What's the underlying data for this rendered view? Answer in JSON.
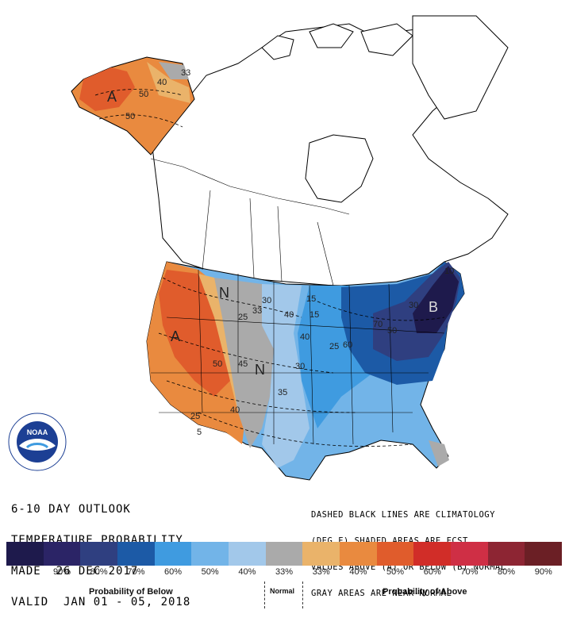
{
  "outlook": {
    "line1": "6-10 DAY OUTLOOK",
    "line2": "TEMPERATURE PROBABILITY",
    "line3": "MADE  26 DEC 2017",
    "line4": "VALID  JAN 01 - 05, 2018"
  },
  "notes": {
    "line1": "DASHED BLACK LINES ARE CLIMATOLOGY",
    "line2": "(DEG F) SHADED AREAS ARE FCST",
    "line3": "VALUES ABOVE (A) OR BELOW (B) NORMAL",
    "line4": "GRAY AREAS ARE NEAR-NORMAL"
  },
  "logo": {
    "name": "NOAA",
    "ring_text": "NATIONAL OCEANIC AND ATMOSPHERIC ADMINISTRATION · U.S. DEPARTMENT OF COMMERCE"
  },
  "map_labels": {
    "above_west": "A",
    "above_alaska": "A",
    "below_east": "B",
    "normal_north": "N",
    "normal_south": "N"
  },
  "contours": [
    "33",
    "40",
    "50",
    "50",
    "30",
    "40",
    "25",
    "33",
    "40",
    "50",
    "40",
    "25",
    "35",
    "30",
    "15",
    "15",
    "50",
    "25",
    "60",
    "70",
    "30",
    "10",
    "5",
    "45"
  ],
  "legend": {
    "colors": [
      "#1e1a4c",
      "#2b2466",
      "#2f3f80",
      "#1c5aa6",
      "#3f9be0",
      "#72b4e8",
      "#a2c8ea",
      "#aaaaaa",
      "#eab36a",
      "#e98a3f",
      "#e05c2c",
      "#d12d28",
      "#cf2f45",
      "#8d2533",
      "#6b1f25"
    ],
    "labels": [
      "",
      "90%",
      "80%",
      "70%",
      "60%",
      "50%",
      "40%",
      "33%",
      "33%",
      "40%",
      "50%",
      "60%",
      "70%",
      "80%",
      "90%"
    ],
    "below_title": "Probability of Below",
    "normal_title": "Normal",
    "above_title": "Probability of Above"
  }
}
